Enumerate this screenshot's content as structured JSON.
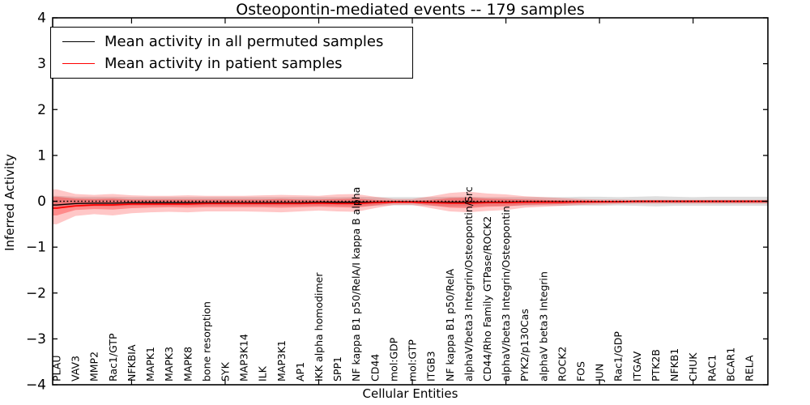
{
  "title": "Osteopontin-mediated events -- 179 samples",
  "legend": {
    "items": [
      {
        "label": "Mean activity in all permuted samples",
        "color": "#000000"
      },
      {
        "label": "Mean activity in patient samples",
        "color": "#ff0000"
      }
    ]
  },
  "chart_data": {
    "type": "line",
    "title": "Osteopontin-mediated events -- 179 samples",
    "xlabel": "Cellular Entities",
    "ylabel": "Inferred Activity",
    "ylim": [
      -4,
      4
    ],
    "yticks": [
      -4,
      -3,
      -2,
      -1,
      0,
      1,
      2,
      3,
      4
    ],
    "grid": false,
    "legend_position": "upper left",
    "zero_line": {
      "style": "dotted",
      "color": "#000000",
      "y": 0
    },
    "categories": [
      "PLAU",
      "VAV3",
      "MMP2",
      "Rac1/GTP",
      "NFKBIA",
      "MAPK1",
      "MAPK3",
      "MAPK8",
      "bone resorption",
      "SYK",
      "MAP3K14",
      "ILK",
      "MAP3K1",
      "AP1",
      "IKK alpha homodimer",
      "SPP1",
      "NF kappa B1 p50/RelA/I kappa B alpha",
      "CD44",
      "mol:GDP",
      "mol:GTP",
      "ITGB3",
      "NF kappa B1 p50/RelA",
      "alphaV/beta3 Integrin/Osteopontin/Src",
      "CD44/Rho Family GTPase/ROCK2",
      "alphaV/beta3 Integrin/Osteopontin",
      "PYK2/p130Cas",
      "alphaV beta3 Integrin",
      "ROCK2",
      "FOS",
      "JUN",
      "Rac1/GDP",
      "ITGAV",
      "PTK2B",
      "NFKB1",
      "CHUK",
      "RAC1",
      "BCAR1",
      "RELA"
    ],
    "series": [
      {
        "name": "Mean activity in all permuted samples",
        "color": "#000000",
        "values": [
          -0.08,
          -0.05,
          -0.04,
          -0.04,
          -0.03,
          -0.03,
          -0.03,
          -0.03,
          -0.03,
          -0.03,
          -0.03,
          -0.03,
          -0.03,
          -0.03,
          -0.02,
          -0.02,
          -0.02,
          -0.02,
          -0.01,
          -0.01,
          -0.02,
          -0.02,
          -0.02,
          -0.02,
          -0.02,
          -0.01,
          -0.01,
          -0.01,
          -0.01,
          -0.01,
          -0.01,
          0,
          0,
          0,
          0,
          0,
          0,
          0
        ]
      },
      {
        "name": "Mean activity in patient samples",
        "color": "#ff0000",
        "values": [
          -0.15,
          -0.1,
          -0.08,
          -0.08,
          -0.06,
          -0.06,
          -0.06,
          -0.06,
          -0.05,
          -0.05,
          -0.05,
          -0.05,
          -0.05,
          -0.05,
          -0.04,
          -0.05,
          -0.05,
          -0.03,
          -0.02,
          -0.02,
          -0.03,
          -0.04,
          -0.04,
          -0.03,
          -0.03,
          -0.02,
          -0.02,
          -0.02,
          -0.01,
          -0.01,
          -0.01,
          0,
          0,
          0,
          0,
          0,
          0,
          0
        ]
      }
    ],
    "bands": [
      {
        "name": "permuted-range",
        "color": "rgba(0,0,0,0.13)",
        "upper": [
          0.12,
          0.1,
          0.1,
          0.1,
          0.09,
          0.09,
          0.09,
          0.09,
          0.09,
          0.09,
          0.09,
          0.09,
          0.09,
          0.09,
          0.09,
          0.09,
          0.1,
          0.09,
          0.09,
          0.09,
          0.09,
          0.1,
          0.1,
          0.09,
          0.09,
          0.09,
          0.09,
          0.09,
          0.1,
          0.1,
          0.09,
          0.1,
          0.11,
          0.1,
          0.09,
          0.1,
          0.1,
          0.1
        ],
        "lower": [
          -0.16,
          -0.12,
          -0.11,
          -0.11,
          -0.1,
          -0.1,
          -0.1,
          -0.1,
          -0.1,
          -0.1,
          -0.1,
          -0.1,
          -0.1,
          -0.1,
          -0.1,
          -0.1,
          -0.11,
          -0.1,
          -0.09,
          -0.09,
          -0.1,
          -0.11,
          -0.11,
          -0.1,
          -0.1,
          -0.1,
          -0.09,
          -0.1,
          -0.1,
          -0.1,
          -0.09,
          -0.1,
          -0.11,
          -0.1,
          -0.1,
          -0.1,
          -0.1,
          -0.1
        ]
      },
      {
        "name": "patient-range-outer",
        "color": "rgba(255,0,0,0.22)",
        "upper": [
          0.26,
          0.16,
          0.14,
          0.16,
          0.13,
          0.12,
          0.12,
          0.13,
          0.12,
          0.12,
          0.12,
          0.13,
          0.14,
          0.13,
          0.12,
          0.15,
          0.16,
          0.1,
          0.05,
          0.05,
          0.11,
          0.18,
          0.21,
          0.17,
          0.15,
          0.11,
          0.09,
          0.07,
          0.05,
          0.04,
          0.04,
          0.03,
          0.03,
          0.03,
          0.03,
          0.03,
          0.03,
          0.03
        ],
        "lower": [
          -0.5,
          -0.32,
          -0.28,
          -0.31,
          -0.26,
          -0.24,
          -0.23,
          -0.24,
          -0.22,
          -0.22,
          -0.22,
          -0.23,
          -0.24,
          -0.22,
          -0.2,
          -0.22,
          -0.23,
          -0.15,
          -0.08,
          -0.08,
          -0.15,
          -0.22,
          -0.24,
          -0.21,
          -0.19,
          -0.14,
          -0.12,
          -0.1,
          -0.08,
          -0.07,
          -0.06,
          -0.05,
          -0.05,
          -0.05,
          -0.05,
          -0.05,
          -0.05,
          -0.05
        ]
      },
      {
        "name": "patient-range-inner",
        "color": "rgba(255,0,0,0.30)",
        "upper": [
          0.1,
          0.06,
          0.05,
          0.06,
          0.04,
          0.04,
          0.04,
          0.04,
          0.04,
          0.04,
          0.04,
          0.04,
          0.05,
          0.04,
          0.04,
          0.05,
          0.06,
          0.03,
          0.01,
          0.01,
          0.03,
          0.07,
          0.08,
          0.06,
          0.05,
          0.04,
          0.03,
          0.02,
          0.02,
          0.01,
          0.01,
          0.01,
          0.01,
          0.01,
          0.01,
          0.01,
          0.01,
          0.01
        ],
        "lower": [
          -0.31,
          -0.19,
          -0.17,
          -0.18,
          -0.15,
          -0.14,
          -0.13,
          -0.14,
          -0.13,
          -0.13,
          -0.13,
          -0.13,
          -0.14,
          -0.13,
          -0.12,
          -0.13,
          -0.14,
          -0.09,
          -0.04,
          -0.04,
          -0.09,
          -0.14,
          -0.15,
          -0.12,
          -0.11,
          -0.08,
          -0.07,
          -0.06,
          -0.05,
          -0.04,
          -0.03,
          -0.03,
          -0.03,
          -0.03,
          -0.03,
          -0.03,
          -0.03,
          -0.03
        ]
      }
    ]
  }
}
